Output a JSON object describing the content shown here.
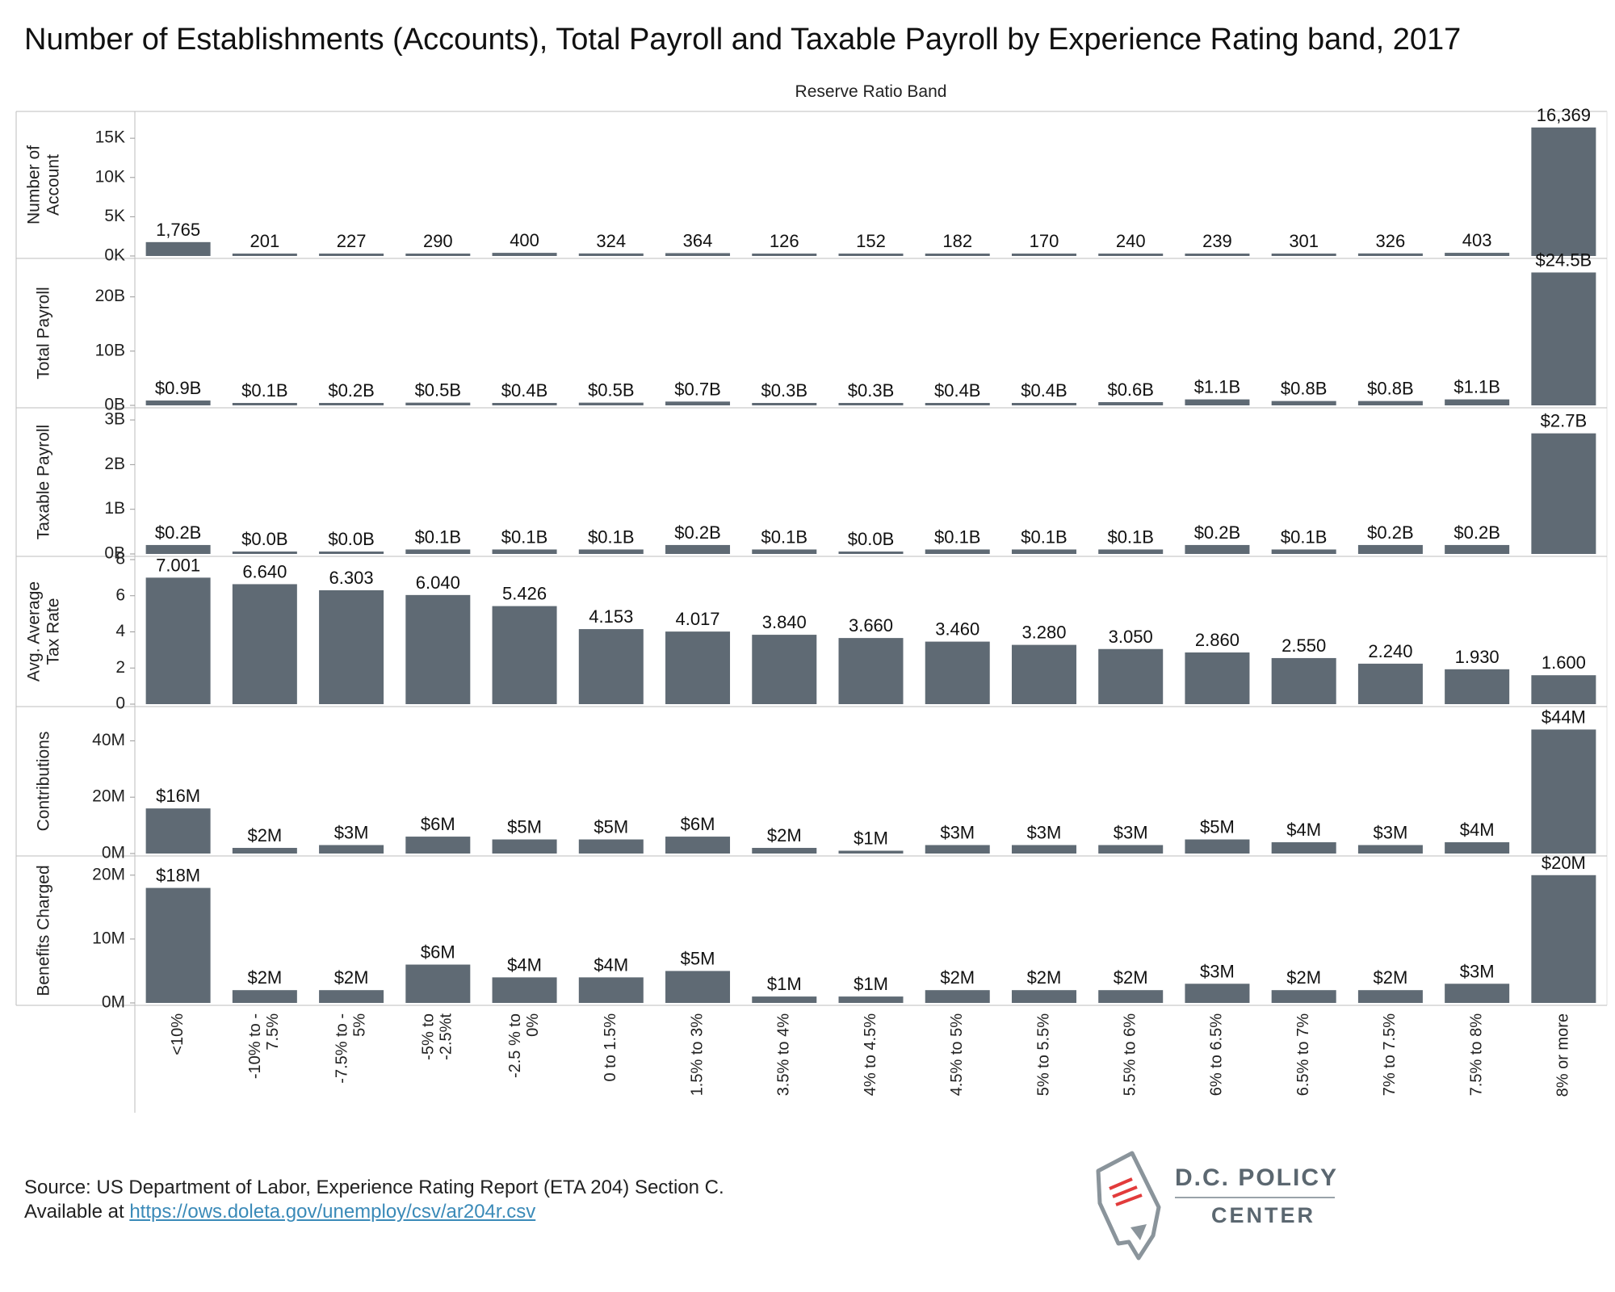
{
  "title": "Number of Establishments (Accounts), Total Payroll and Taxable Payroll by Experience Rating band, 2017",
  "footer": {
    "source": "Source: US Department of Labor, Experience Rating Report (ETA 204) Section C.",
    "available_prefix": "Available at ",
    "url": "https://ows.doleta.gov/unemploy/csv/ar204r.csv"
  },
  "logo": {
    "line1": "D.C. POLICY",
    "line2": "CENTER"
  },
  "colors": {
    "bar": "#5f6a74",
    "grid": "#d0d0d0",
    "logo_accent": "#e23b3b"
  },
  "chart_data": {
    "type": "bar",
    "column_header": "Reserve Ratio Band",
    "categories": [
      "<10%",
      "-10% to -7.5%",
      "-7.5% to -5%",
      "-5% to -2.5%t",
      "-2.5 % to 0%",
      "0 to 1.5%",
      "1.5% to 3%",
      "3.5% to 4%",
      "4% to 4.5%",
      "4.5% to 5%",
      "5% to 5.5%",
      "5.5% to 6%",
      "6% to 6.5%",
      "6.5% to 7%",
      "7% to 7.5%",
      "7.5% to 8%",
      "8% or more"
    ],
    "category_label_lines": [
      [
        "<10%"
      ],
      [
        "-10% to -",
        "7.5%"
      ],
      [
        "-7.5% to -",
        "5%"
      ],
      [
        "-5% to",
        "-2.5%t"
      ],
      [
        "-2.5 % to",
        "0%"
      ],
      [
        "0 to 1.5%"
      ],
      [
        "1.5% to 3%"
      ],
      [
        "3.5% to 4%"
      ],
      [
        "4% to 4.5%"
      ],
      [
        "4.5% to 5%"
      ],
      [
        "5% to 5.5%"
      ],
      [
        "5.5% to 6%"
      ],
      [
        "6% to 6.5%"
      ],
      [
        "6.5% to 7%"
      ],
      [
        "7% to 7.5%"
      ],
      [
        "7.5% to 8%"
      ],
      [
        "8% or more"
      ]
    ],
    "panels": [
      {
        "label": [
          "Number of",
          "Account"
        ],
        "ymax": 18000,
        "ticks": [
          {
            "v": 15000,
            "t": "15K"
          },
          {
            "v": 10000,
            "t": "10K"
          },
          {
            "v": 5000,
            "t": "5K"
          },
          {
            "v": 0,
            "t": "0K"
          }
        ],
        "values": [
          1765,
          201,
          227,
          290,
          400,
          324,
          364,
          126,
          152,
          182,
          170,
          240,
          239,
          301,
          326,
          403,
          16369
        ],
        "labels": [
          "1,765",
          "201",
          "227",
          "290",
          "400",
          "324",
          "364",
          "126",
          "152",
          "182",
          "170",
          "240",
          "239",
          "301",
          "326",
          "403",
          "16,369"
        ]
      },
      {
        "label": [
          "Total Payroll"
        ],
        "ymax": 26500000000,
        "ticks": [
          {
            "v": 20000000000,
            "t": "20B"
          },
          {
            "v": 10000000000,
            "t": "10B"
          },
          {
            "v": 0,
            "t": "0B"
          }
        ],
        "values": [
          900000000,
          100000000,
          200000000,
          500000000,
          400000000,
          500000000,
          700000000,
          300000000,
          300000000,
          400000000,
          400000000,
          600000000,
          1100000000,
          800000000,
          800000000,
          1100000000,
          24500000000
        ],
        "labels": [
          "$0.9B",
          "$0.1B",
          "$0.2B",
          "$0.5B",
          "$0.4B",
          "$0.5B",
          "$0.7B",
          "$0.3B",
          "$0.3B",
          "$0.4B",
          "$0.4B",
          "$0.6B",
          "$1.1B",
          "$0.8B",
          "$0.8B",
          "$1.1B",
          "$24.5B"
        ]
      },
      {
        "label": [
          "Taxable Payroll"
        ],
        "ymax": 3200000000,
        "ticks": [
          {
            "v": 3000000000,
            "t": "3B"
          },
          {
            "v": 2000000000,
            "t": "2B"
          },
          {
            "v": 1000000000,
            "t": "1B"
          },
          {
            "v": 0,
            "t": "0B"
          }
        ],
        "values": [
          200000000,
          30000000,
          30000000,
          100000000,
          100000000,
          100000000,
          200000000,
          100000000,
          30000000,
          100000000,
          100000000,
          100000000,
          200000000,
          100000000,
          200000000,
          200000000,
          2700000000
        ],
        "labels": [
          "$0.2B",
          "$0.0B",
          "$0.0B",
          "$0.1B",
          "$0.1B",
          "$0.1B",
          "$0.2B",
          "$0.1B",
          "$0.0B",
          "$0.1B",
          "$0.1B",
          "$0.1B",
          "$0.2B",
          "$0.1B",
          "$0.2B",
          "$0.2B",
          "$2.7B"
        ]
      },
      {
        "label": [
          "Avg. Average",
          "Tax Rate"
        ],
        "ymax": 8,
        "ticks": [
          {
            "v": 8,
            "t": "8"
          },
          {
            "v": 6,
            "t": "6"
          },
          {
            "v": 4,
            "t": "4"
          },
          {
            "v": 2,
            "t": "2"
          },
          {
            "v": 0,
            "t": "0"
          }
        ],
        "values": [
          7.001,
          6.64,
          6.303,
          6.04,
          5.426,
          4.153,
          4.017,
          3.84,
          3.66,
          3.46,
          3.28,
          3.05,
          2.86,
          2.55,
          2.24,
          1.93,
          1.6
        ],
        "labels": [
          "7.001",
          "6.640",
          "6.303",
          "6.040",
          "5.426",
          "4.153",
          "4.017",
          "3.840",
          "3.660",
          "3.460",
          "3.280",
          "3.050",
          "2.860",
          "2.550",
          "2.240",
          "1.930",
          "1.600"
        ]
      },
      {
        "label": [
          "Contributions"
        ],
        "ymax": 51000000,
        "ticks": [
          {
            "v": 40000000,
            "t": "40M"
          },
          {
            "v": 20000000,
            "t": "20M"
          },
          {
            "v": 0,
            "t": "0M"
          }
        ],
        "values": [
          16000000,
          2000000,
          3000000,
          6000000,
          5000000,
          5000000,
          6000000,
          2000000,
          1000000,
          3000000,
          3000000,
          3000000,
          5000000,
          4000000,
          3000000,
          4000000,
          44000000
        ],
        "labels": [
          "$16M",
          "$2M",
          "$3M",
          "$6M",
          "$5M",
          "$5M",
          "$6M",
          "$2M",
          "$1M",
          "$3M",
          "$3M",
          "$3M",
          "$5M",
          "$4M",
          "$3M",
          "$4M",
          "$44M"
        ]
      },
      {
        "label": [
          "Benefits Charged"
        ],
        "ymax": 22500000,
        "ticks": [
          {
            "v": 20000000,
            "t": "20M"
          },
          {
            "v": 10000000,
            "t": "10M"
          },
          {
            "v": 0,
            "t": "0M"
          }
        ],
        "values": [
          18000000,
          2000000,
          2000000,
          6000000,
          4000000,
          4000000,
          5000000,
          1000000,
          1000000,
          2000000,
          2000000,
          2000000,
          3000000,
          2000000,
          2000000,
          3000000,
          20000000
        ],
        "labels": [
          "$18M",
          "$2M",
          "$2M",
          "$6M",
          "$4M",
          "$4M",
          "$5M",
          "$1M",
          "$1M",
          "$2M",
          "$2M",
          "$2M",
          "$3M",
          "$2M",
          "$2M",
          "$3M",
          "$20M"
        ]
      }
    ]
  }
}
